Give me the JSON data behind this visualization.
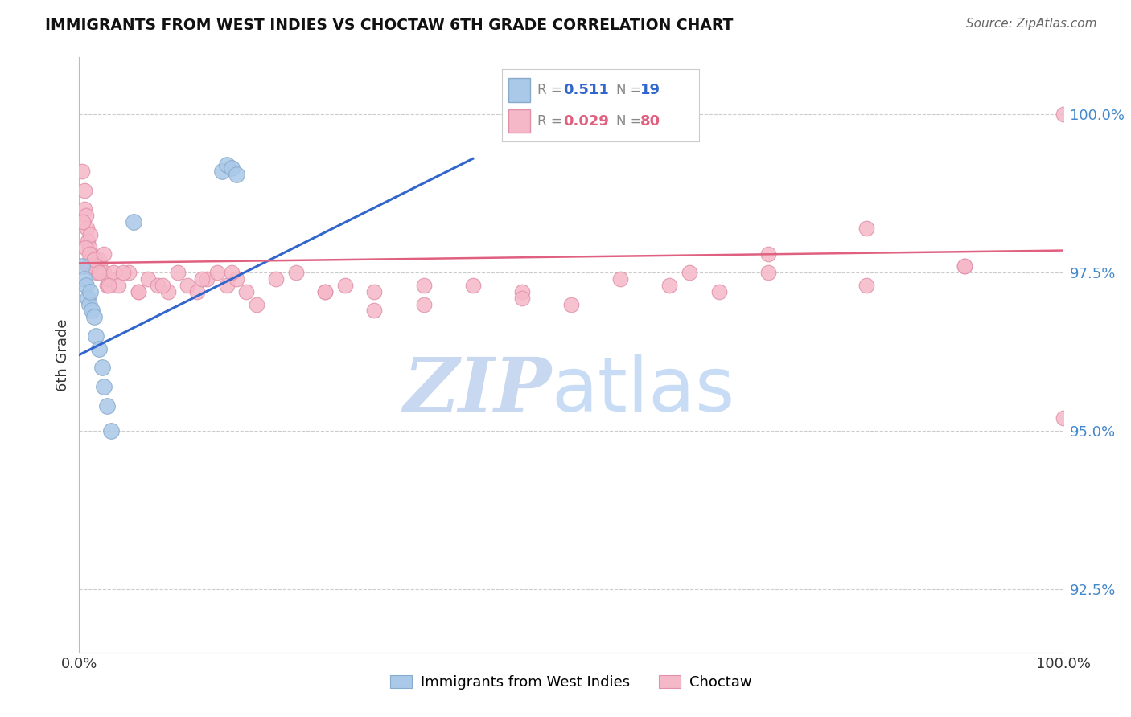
{
  "title": "IMMIGRANTS FROM WEST INDIES VS CHOCTAW 6TH GRADE CORRELATION CHART",
  "source": "Source: ZipAtlas.com",
  "ylabel": "6th Grade",
  "yticks": [
    92.5,
    95.0,
    97.5,
    100.0
  ],
  "ytick_labels": [
    "92.5%",
    "95.0%",
    "97.5%",
    "100.0%"
  ],
  "xmin": 0.0,
  "xmax": 100.0,
  "ymin": 91.5,
  "ymax": 100.9,
  "blue_marker_color": "#aac8e8",
  "blue_edge_color": "#88aacc",
  "pink_marker_color": "#f5b8c8",
  "pink_edge_color": "#e090a8",
  "blue_line_color": "#3366cc",
  "pink_line_color": "#e06080",
  "blue_x": [
    0.3,
    0.5,
    0.7,
    0.9,
    1.0,
    1.1,
    1.3,
    1.5,
    1.7,
    2.0,
    2.3,
    2.5,
    2.8,
    3.2,
    5.5,
    14.5,
    15.0,
    15.5,
    16.0
  ],
  "blue_y": [
    97.6,
    97.4,
    97.3,
    97.1,
    97.0,
    97.2,
    96.9,
    96.8,
    96.5,
    96.3,
    96.0,
    95.7,
    95.4,
    95.0,
    98.3,
    99.1,
    99.2,
    99.15,
    99.05
  ],
  "blue_trend_x": [
    0.0,
    40.0
  ],
  "blue_trend_y": [
    96.2,
    99.3
  ],
  "pink_trend_x": [
    0.0,
    100.0
  ],
  "pink_trend_y": [
    97.65,
    97.85
  ],
  "pink_x": [
    0.3,
    0.5,
    0.5,
    0.7,
    0.8,
    0.9,
    1.0,
    1.1,
    1.2,
    1.3,
    1.5,
    1.6,
    1.8,
    2.0,
    2.1,
    2.2,
    2.5,
    2.8,
    3.0,
    3.5,
    4.0,
    5.0,
    6.0,
    7.0,
    8.0,
    9.0,
    10.0,
    11.0,
    12.0,
    13.0,
    14.0,
    15.0,
    16.0,
    17.0,
    18.0,
    20.0,
    22.0,
    25.0,
    27.0,
    30.0,
    35.0,
    40.0,
    45.0,
    50.0,
    60.0,
    65.0,
    70.0,
    80.0,
    90.0,
    100.0,
    0.4,
    0.6,
    0.9,
    1.0,
    1.2,
    1.5,
    2.0,
    2.5,
    3.0,
    4.5,
    6.0,
    8.5,
    12.5,
    15.5,
    25.0,
    30.0,
    35.0,
    45.0,
    55.0,
    62.0,
    70.0,
    80.0,
    90.0,
    100.0
  ],
  "pink_y": [
    99.1,
    98.8,
    98.5,
    98.4,
    98.2,
    98.0,
    97.9,
    98.1,
    97.8,
    97.7,
    97.7,
    97.6,
    97.5,
    97.7,
    97.6,
    97.5,
    97.5,
    97.3,
    97.4,
    97.5,
    97.3,
    97.5,
    97.2,
    97.4,
    97.3,
    97.2,
    97.5,
    97.3,
    97.2,
    97.4,
    97.5,
    97.3,
    97.4,
    97.2,
    97.0,
    97.4,
    97.5,
    97.2,
    97.3,
    97.2,
    97.0,
    97.3,
    97.2,
    97.0,
    97.3,
    97.2,
    97.5,
    97.3,
    97.6,
    100.0,
    98.3,
    97.9,
    97.6,
    97.8,
    97.6,
    97.7,
    97.5,
    97.8,
    97.3,
    97.5,
    97.2,
    97.3,
    97.4,
    97.5,
    97.2,
    96.9,
    97.3,
    97.1,
    97.4,
    97.5,
    97.8,
    98.2,
    97.6,
    95.2
  ],
  "watermark_zip_color": "#c8d8f0",
  "watermark_atlas_color": "#c8ddf5"
}
